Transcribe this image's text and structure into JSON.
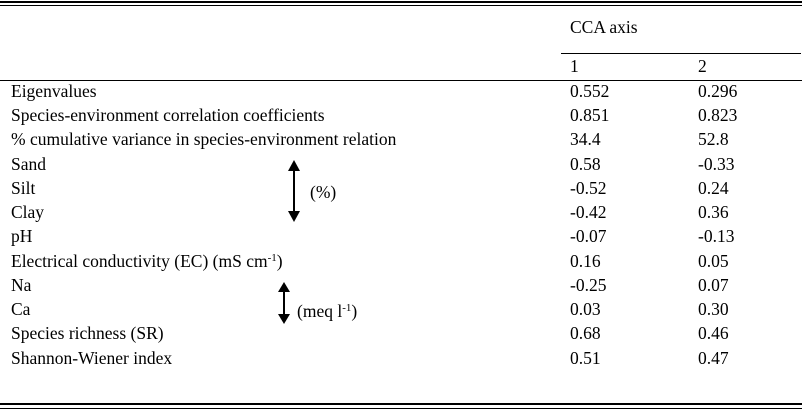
{
  "header": {
    "group_label": "CCA axis",
    "col1": "1",
    "col2": "2"
  },
  "rows": [
    {
      "label": "Eigenvalues",
      "v1": "0.552",
      "v2": "0.296"
    },
    {
      "label": "Species-environment correlation coefficients",
      "v1": "0.851",
      "v2": "0.823"
    },
    {
      "label": "% cumulative variance in species-environment relation",
      "v1": "34.4",
      "v2": "52.8"
    },
    {
      "label": "Sand",
      "v1": "0.58",
      "v2": "-0.33"
    },
    {
      "label": "Silt",
      "v1": "-0.52",
      "v2": "0.24"
    },
    {
      "label": "Clay",
      "v1": "-0.42",
      "v2": "0.36"
    },
    {
      "label": "pH",
      "v1": "-0.07",
      "v2": "-0.13"
    },
    {
      "label": "Electrical conductivity (EC) (mS cm",
      "label_sup": "-1",
      "label_end": ")",
      "v1": "0.16",
      "v2": "0.05"
    },
    {
      "label": "Na",
      "v1": "-0.25",
      "v2": "0.07"
    },
    {
      "label": "Ca",
      "v1": "0.03",
      "v2": "0.30"
    },
    {
      "label": "Species richness (SR)",
      "v1": "0.68",
      "v2": "0.46"
    },
    {
      "label": "Shannon-Wiener index",
      "v1": "0.51",
      "v2": "0.47"
    }
  ],
  "groups": {
    "texture_unit": "(%)",
    "ion_unit": "(meq l",
    "ion_unit_sup": "-1",
    "ion_unit_end": ")"
  }
}
